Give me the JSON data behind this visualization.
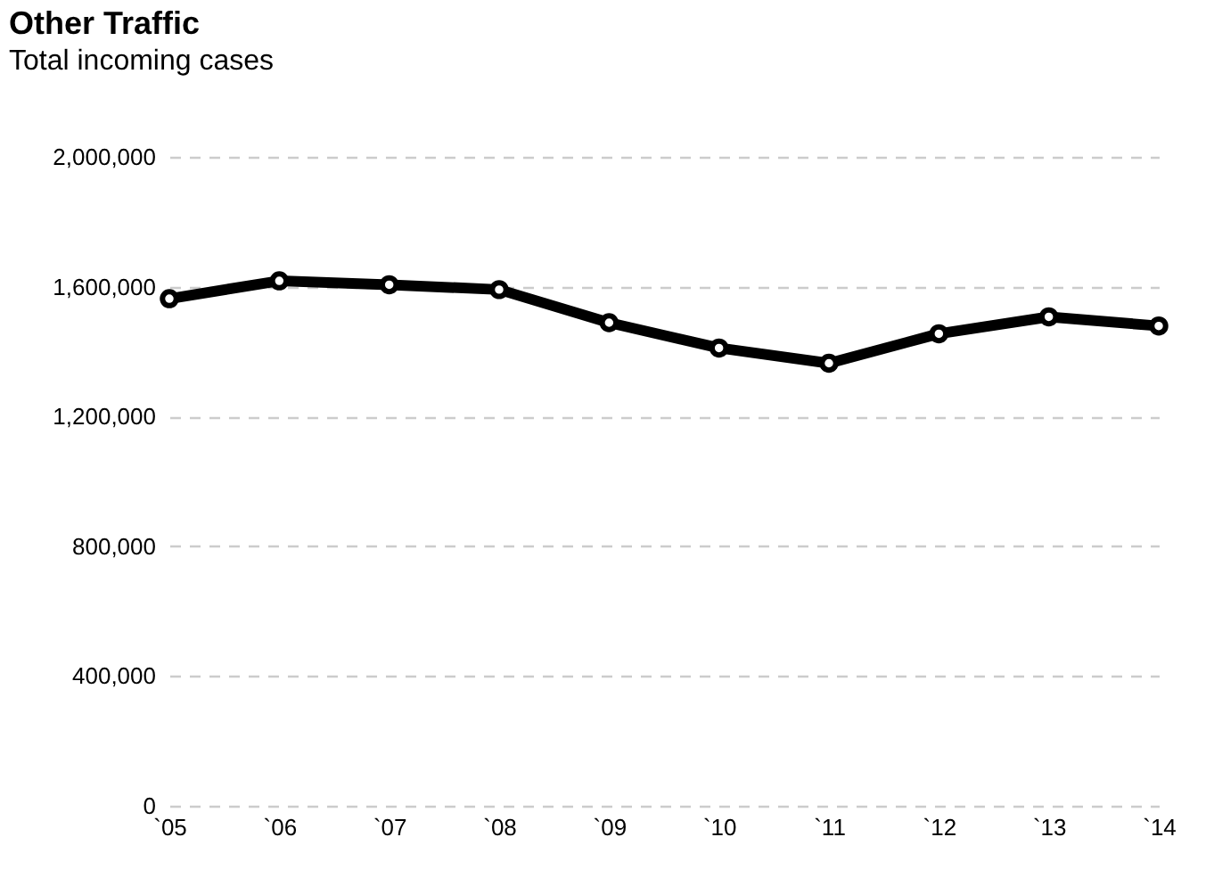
{
  "chart_data": {
    "type": "line",
    "title": "Other Traffic",
    "subtitle": "Total incoming cases",
    "categories": [
      "`05",
      "`06",
      "`07",
      "`08",
      "`09",
      "`10",
      "`11",
      "`12",
      "`13",
      "`14"
    ],
    "series": [
      {
        "color": "#000000",
        "values": [
          1563000,
          1618000,
          1606000,
          1591000,
          1489000,
          1411000,
          1364000,
          1455000,
          1507000,
          1479000
        ]
      }
    ],
    "ylim": [
      0,
      2000000
    ],
    "yticks": [
      {
        "value": 0,
        "label": "0"
      },
      {
        "value": 400000,
        "label": "400,000"
      },
      {
        "value": 800000,
        "label": "800,000"
      },
      {
        "value": 1200000,
        "label": "1,200,000"
      },
      {
        "value": 1600000,
        "label": "1,600,000"
      },
      {
        "value": 2000000,
        "label": "2,000,000"
      }
    ],
    "grid": "y",
    "marker": "circle",
    "line_style": "solid"
  }
}
